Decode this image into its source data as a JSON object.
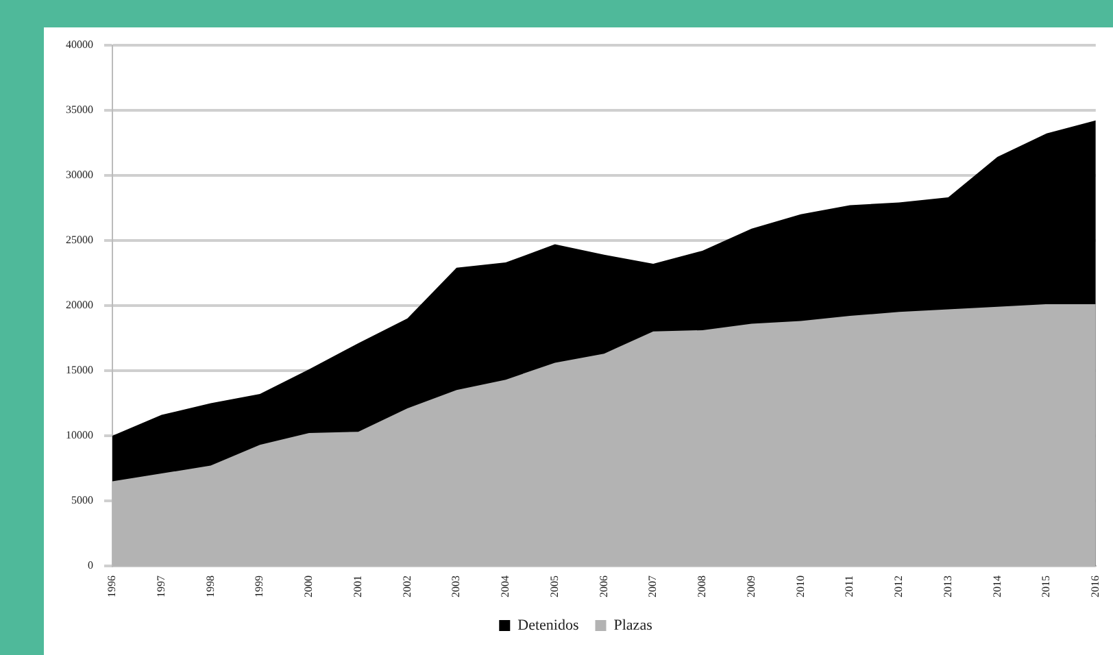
{
  "chart_data": {
    "type": "area",
    "categories": [
      "1996",
      "1997",
      "1998",
      "1999",
      "2000",
      "2001",
      "2002",
      "2003",
      "2004",
      "2005",
      "2006",
      "2007",
      "2008",
      "2009",
      "2010",
      "2011",
      "2012",
      "2013",
      "2014",
      "2015",
      "2016"
    ],
    "series": [
      {
        "name": "Detenidos",
        "color": "#000000",
        "values": [
          10000,
          11600,
          12500,
          13200,
          15100,
          17100,
          19000,
          22900,
          23300,
          24700,
          23900,
          23200,
          24200,
          25900,
          27000,
          27700,
          27900,
          28300,
          31400,
          33200,
          34200
        ]
      },
      {
        "name": "Plazas",
        "color": "#b3b3b3",
        "values": [
          6500,
          7100,
          7700,
          9300,
          10200,
          10300,
          12100,
          13500,
          14300,
          15600,
          16300,
          18000,
          18100,
          18600,
          18800,
          19200,
          19500,
          19700,
          19900,
          20100,
          20100
        ]
      }
    ],
    "ylim": [
      0,
      40000
    ],
    "yticks": [
      0,
      5000,
      10000,
      15000,
      20000,
      25000,
      30000,
      35000,
      40000
    ],
    "grid": "y",
    "legend": "bottom"
  }
}
